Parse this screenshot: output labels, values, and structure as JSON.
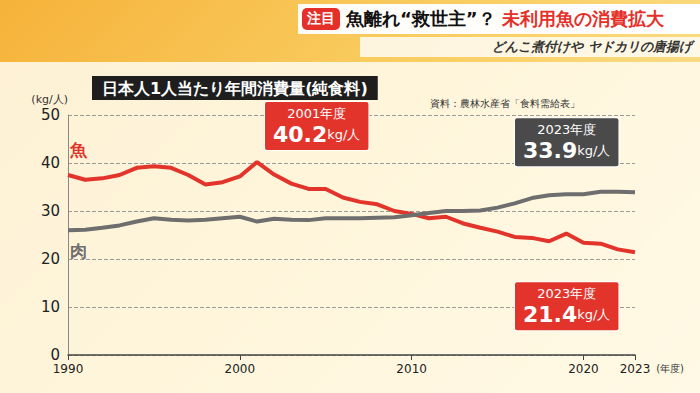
{
  "header": {
    "badge": "注目",
    "headline": [
      "魚離れ“救世主”？",
      "未利用魚の消費拡大"
    ],
    "subtitle": "どんこ煮付けや ヤドカリの唐揚げ"
  },
  "chart_data": {
    "type": "line",
    "title": "日本人1人当たり年間消費量(純食料)",
    "source": "資料：農林水産省「食料需給表」",
    "y_label": "(kg/人)",
    "x_label": "(年度)",
    "x": [
      1990,
      1991,
      1992,
      1993,
      1994,
      1995,
      1996,
      1997,
      1998,
      1999,
      2000,
      2001,
      2002,
      2003,
      2004,
      2005,
      2006,
      2007,
      2008,
      2009,
      2010,
      2011,
      2012,
      2013,
      2014,
      2015,
      2016,
      2017,
      2018,
      2019,
      2020,
      2021,
      2022,
      2023
    ],
    "series": [
      {
        "name": "魚",
        "color": "#e2342b",
        "values": [
          37.5,
          36.5,
          36.8,
          37.5,
          39.0,
          39.3,
          39.0,
          37.5,
          35.5,
          36.0,
          37.2,
          40.2,
          37.6,
          35.7,
          34.6,
          34.6,
          32.8,
          31.9,
          31.4,
          30.0,
          29.4,
          28.5,
          28.8,
          27.4,
          26.5,
          25.7,
          24.6,
          24.4,
          23.7,
          25.3,
          23.4,
          23.2,
          22.0,
          21.4
        ]
      },
      {
        "name": "肉",
        "color": "#6e6e6e",
        "values": [
          26.0,
          26.1,
          26.5,
          27.0,
          27.8,
          28.5,
          28.2,
          28.0,
          28.2,
          28.5,
          28.8,
          27.8,
          28.4,
          28.2,
          28.1,
          28.5,
          28.5,
          28.5,
          28.6,
          28.7,
          29.1,
          29.6,
          30.0,
          30.0,
          30.1,
          30.7,
          31.6,
          32.7,
          33.3,
          33.5,
          33.5,
          34.0,
          34.0,
          33.9
        ]
      }
    ],
    "annotations": [
      {
        "series": "魚",
        "x": 2001,
        "y": 40.2,
        "label": "2001年度",
        "unit": "kg/人"
      },
      {
        "series": "肉",
        "x": 2023,
        "y": 33.9,
        "label": "2023年度",
        "unit": "kg/人"
      },
      {
        "series": "魚",
        "x": 2023,
        "y": 21.4,
        "label": "2023年度",
        "unit": "kg/人"
      }
    ],
    "xlim": [
      1990,
      2023
    ],
    "xticks": [
      1990,
      2000,
      2010,
      2020,
      2023
    ],
    "ylim": [
      0,
      50
    ],
    "yticks": [
      0,
      10,
      20,
      30,
      40,
      50
    ],
    "grid": true
  }
}
